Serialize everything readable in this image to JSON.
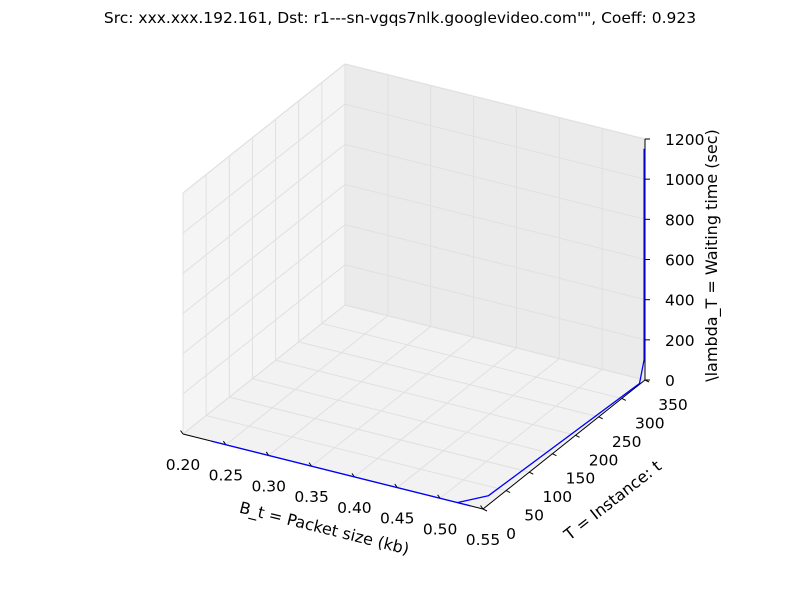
{
  "chart_data": {
    "type": "line",
    "projection": "3d",
    "title": "Src: xxx.xxx.192.161, Dst: r1---sn-vgqs7nlk.googlevideo.com\"\", Coeff: 0.923",
    "xlabel": "B_t = Packet size (kb)",
    "ylabel": "T = Instance: t",
    "zlabel": "\\lambda_T = Waiting time (sec)",
    "xlim": [
      0.2,
      0.55
    ],
    "ylim": [
      0,
      350
    ],
    "zlim": [
      0,
      1200
    ],
    "x_ticks": [
      "0.20",
      "0.25",
      "0.30",
      "0.35",
      "0.40",
      "0.45",
      "0.50",
      "0.55"
    ],
    "y_ticks": [
      "0",
      "50",
      "100",
      "150",
      "200",
      "250",
      "300",
      "350"
    ],
    "z_ticks": [
      "0",
      "200",
      "400",
      "600",
      "800",
      "1000",
      "1200"
    ],
    "grid": true,
    "line_color": "#0000ff",
    "series": [
      {
        "points": [
          {
            "x": 0.233,
            "y": 0,
            "z": 0
          },
          {
            "x": 0.535,
            "y": 0,
            "z": 0
          },
          {
            "x": 0.52,
            "y": 0,
            "z": 0
          },
          {
            "x": 0.54,
            "y": 30,
            "z": 0
          },
          {
            "x": 0.549,
            "y": 340,
            "z": 0
          },
          {
            "x": 0.549,
            "y": 350,
            "z": 100
          },
          {
            "x": 0.549,
            "y": 350,
            "z": 1150
          }
        ]
      }
    ]
  }
}
